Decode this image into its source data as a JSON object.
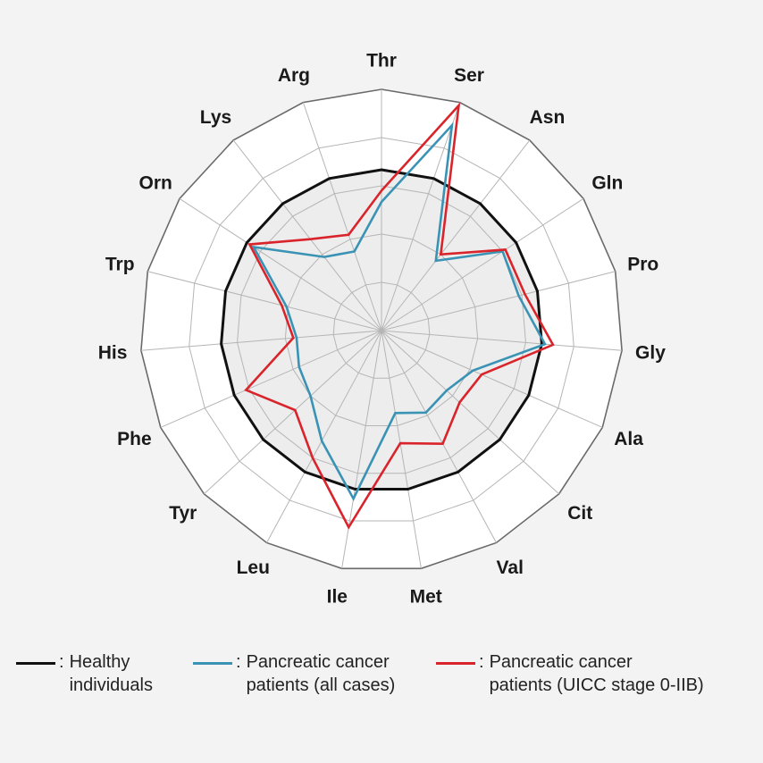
{
  "chart_data": {
    "type": "radar",
    "axes": [
      "Thr",
      "Ser",
      "Asn",
      "Gln",
      "Pro",
      "Gly",
      "Ala",
      "Cit",
      "Val",
      "Met",
      "Ile",
      "Leu",
      "Tyr",
      "Phe",
      "His",
      "Trp",
      "Orn",
      "Lys",
      "Arg"
    ],
    "rings": 5,
    "grid": true,
    "rmax": 1.5,
    "series": [
      {
        "name": "Healthy individuals",
        "color": "#111111",
        "values": [
          1.0,
          1.0,
          1.0,
          1.0,
          1.0,
          1.0,
          1.0,
          1.0,
          1.0,
          1.0,
          1.0,
          1.0,
          1.0,
          1.0,
          1.0,
          1.0,
          1.0,
          1.0,
          1.0
        ]
      },
      {
        "name": "Pancreatic cancer patients (all cases)",
        "color": "#3a93b5",
        "values": [
          0.8,
          1.35,
          0.55,
          0.9,
          0.88,
          1.02,
          0.62,
          0.55,
          0.58,
          0.52,
          1.06,
          0.78,
          0.6,
          0.56,
          0.53,
          0.61,
          0.95,
          0.58,
          0.52
        ]
      },
      {
        "name": "Pancreatic cancer patients (UICC stage 0-IIB)",
        "color": "#d9242b",
        "values": [
          0.87,
          1.48,
          0.6,
          0.92,
          0.92,
          1.07,
          0.68,
          0.66,
          0.8,
          0.71,
          1.24,
          0.9,
          0.73,
          0.92,
          0.55,
          0.64,
          0.98,
          0.72,
          0.63
        ]
      }
    ],
    "legend": "bottom"
  },
  "legend_items": [
    {
      "label": "Healthy\nindividuals",
      "color": "#111111"
    },
    {
      "label": "Pancreatic cancer\npatients (all cases)",
      "color": "#3a93b5"
    },
    {
      "label": "Pancreatic cancer\npatients (UICC stage 0-IIB)",
      "color": "#d9242b"
    }
  ],
  "legend_separator": ":"
}
